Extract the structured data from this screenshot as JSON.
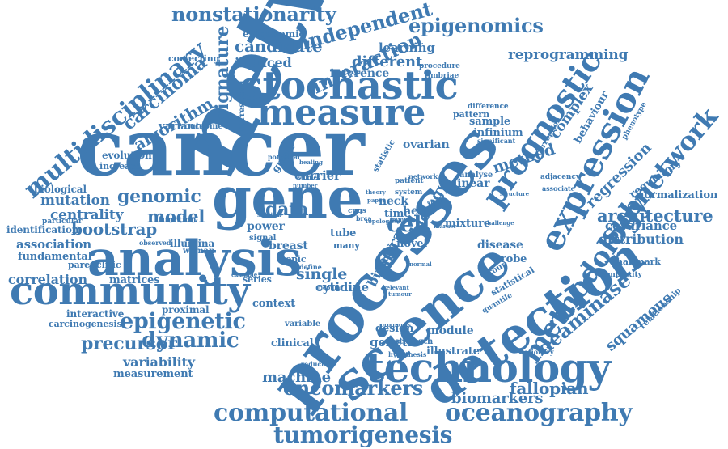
{
  "color": "#3f7ab2",
  "words": [
    "network",
    "cancer",
    "processes",
    "science",
    "detection",
    "gene",
    "analysis",
    "community",
    "technology",
    "stochastic",
    "measure",
    "expression",
    "prognostic",
    "methodology",
    "subnetwork",
    "computational",
    "oceanography",
    "tumorigenesis",
    "oncomarkers",
    "biomarkers",
    "epigenetic",
    "dynamic",
    "precursor",
    "multidisciplinary",
    "nonstationarity",
    "independent",
    "epigenomics",
    "interaction",
    "candidate",
    "signature",
    "carcinoma",
    "algorithm",
    "reprogramming",
    "different",
    "learning",
    "induced",
    "inference",
    "epigenomic",
    "correcting",
    "variance",
    "outcome",
    "ovarian",
    "method",
    "complex",
    "behaviour",
    "regression",
    "regulatory",
    "architecture",
    "normalization",
    "covariance",
    "distribution",
    "deaminase",
    "squamous",
    "relationship",
    "hallmark",
    "genomic",
    "mutation",
    "model",
    "centrality",
    "bootstrap",
    "association",
    "fundamental",
    "correlation",
    "matrices",
    "variability",
    "measurement",
    "interactive",
    "carcinogenesis",
    "proximal",
    "biological",
    "identification",
    "illumina",
    "breast",
    "power",
    "data",
    "cell",
    "biology",
    "carrier",
    "single",
    "cytidine",
    "context",
    "fallopian",
    "machine",
    "genetic",
    "module",
    "design",
    "clinical",
    "variable",
    "illustrate",
    "strength",
    "hypothesis",
    "reduction",
    "neck",
    "head",
    "tube",
    "many",
    "intra",
    "binary",
    "time",
    "novel",
    "disease",
    "probe",
    "mixture",
    "linear",
    "analyse",
    "sample",
    "infinium",
    "pattern",
    "difference",
    "procedure",
    "fimbriae",
    "corruption",
    "phenotype",
    "significant",
    "adjacency",
    "associate",
    "stationary",
    "quantile",
    "statistical",
    "group",
    "complexity",
    "evolution",
    "increase",
    "graph",
    "correspond",
    "potential",
    "statistic",
    "patient",
    "system",
    "cpgs",
    "brca",
    "topic",
    "signal",
    "series",
    "define",
    "woman",
    "parenclitic",
    "function",
    "particular",
    "observed",
    "example",
    "survival",
    "challenge",
    "topological",
    "marker",
    "immune",
    "structure",
    "chronic",
    "normal",
    "relevant",
    "paper",
    "theory",
    "prognosis",
    "popular",
    "number",
    "studies",
    "healing",
    "tumour",
    "network"
  ]
}
